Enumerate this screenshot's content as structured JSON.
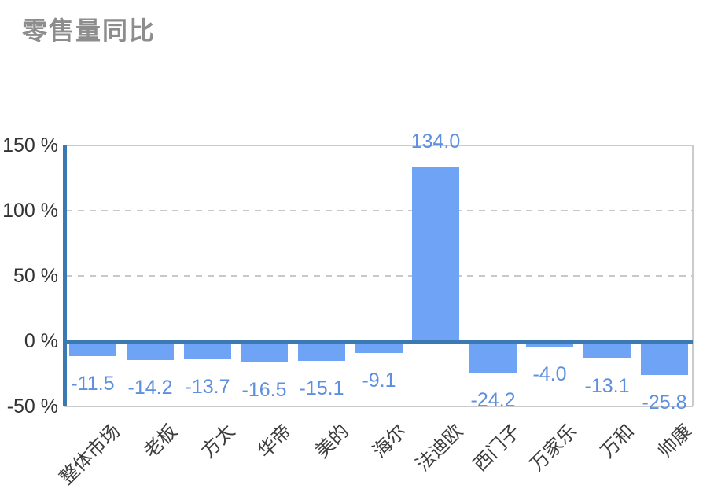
{
  "page": {
    "title": "零售量同比"
  },
  "chart_data": {
    "type": "bar",
    "title": "零售量同比",
    "categories": [
      "整体市场",
      "老板",
      "方太",
      "华帝",
      "美的",
      "海尔",
      "法迪欧",
      "西门子",
      "万家乐",
      "万和",
      "帅康"
    ],
    "values": [
      -11.5,
      -14.2,
      -13.7,
      -16.5,
      -15.1,
      -9.1,
      134.0,
      -24.2,
      -4.0,
      -13.1,
      -25.8
    ],
    "value_labels": [
      "-11.5",
      "-14.2",
      "-13.7",
      "-16.5",
      "-15.1",
      "-9.1",
      "134.0",
      "-24.2",
      "-4.0",
      "-13.1",
      "-25.8"
    ],
    "unit": "%",
    "xlabel": "",
    "ylabel": "",
    "y_axis": {
      "tick_labels": [
        "150 %",
        "100 %",
        "50 %",
        "0 %",
        "-50 %"
      ],
      "tick_values": [
        150,
        100,
        50,
        0,
        -50
      ],
      "range": [
        -50,
        150
      ]
    },
    "grid": {
      "dashed_horizontal_at": [
        100,
        50
      ],
      "solid_borders": [
        "top",
        "right",
        "bottom"
      ]
    },
    "legend_position": "none",
    "colors": {
      "bar": "#6FA3F6",
      "axis_line": "#3B79B2",
      "zero_line": "#3B79B2",
      "value_label": "#5D8FE0",
      "grid_line": "#C8C8C8",
      "border_line": "#CBCBCB",
      "tick_text": "#333333",
      "axis_label_text": "#3C3C3C",
      "title_text": "#8D8D8D"
    }
  }
}
